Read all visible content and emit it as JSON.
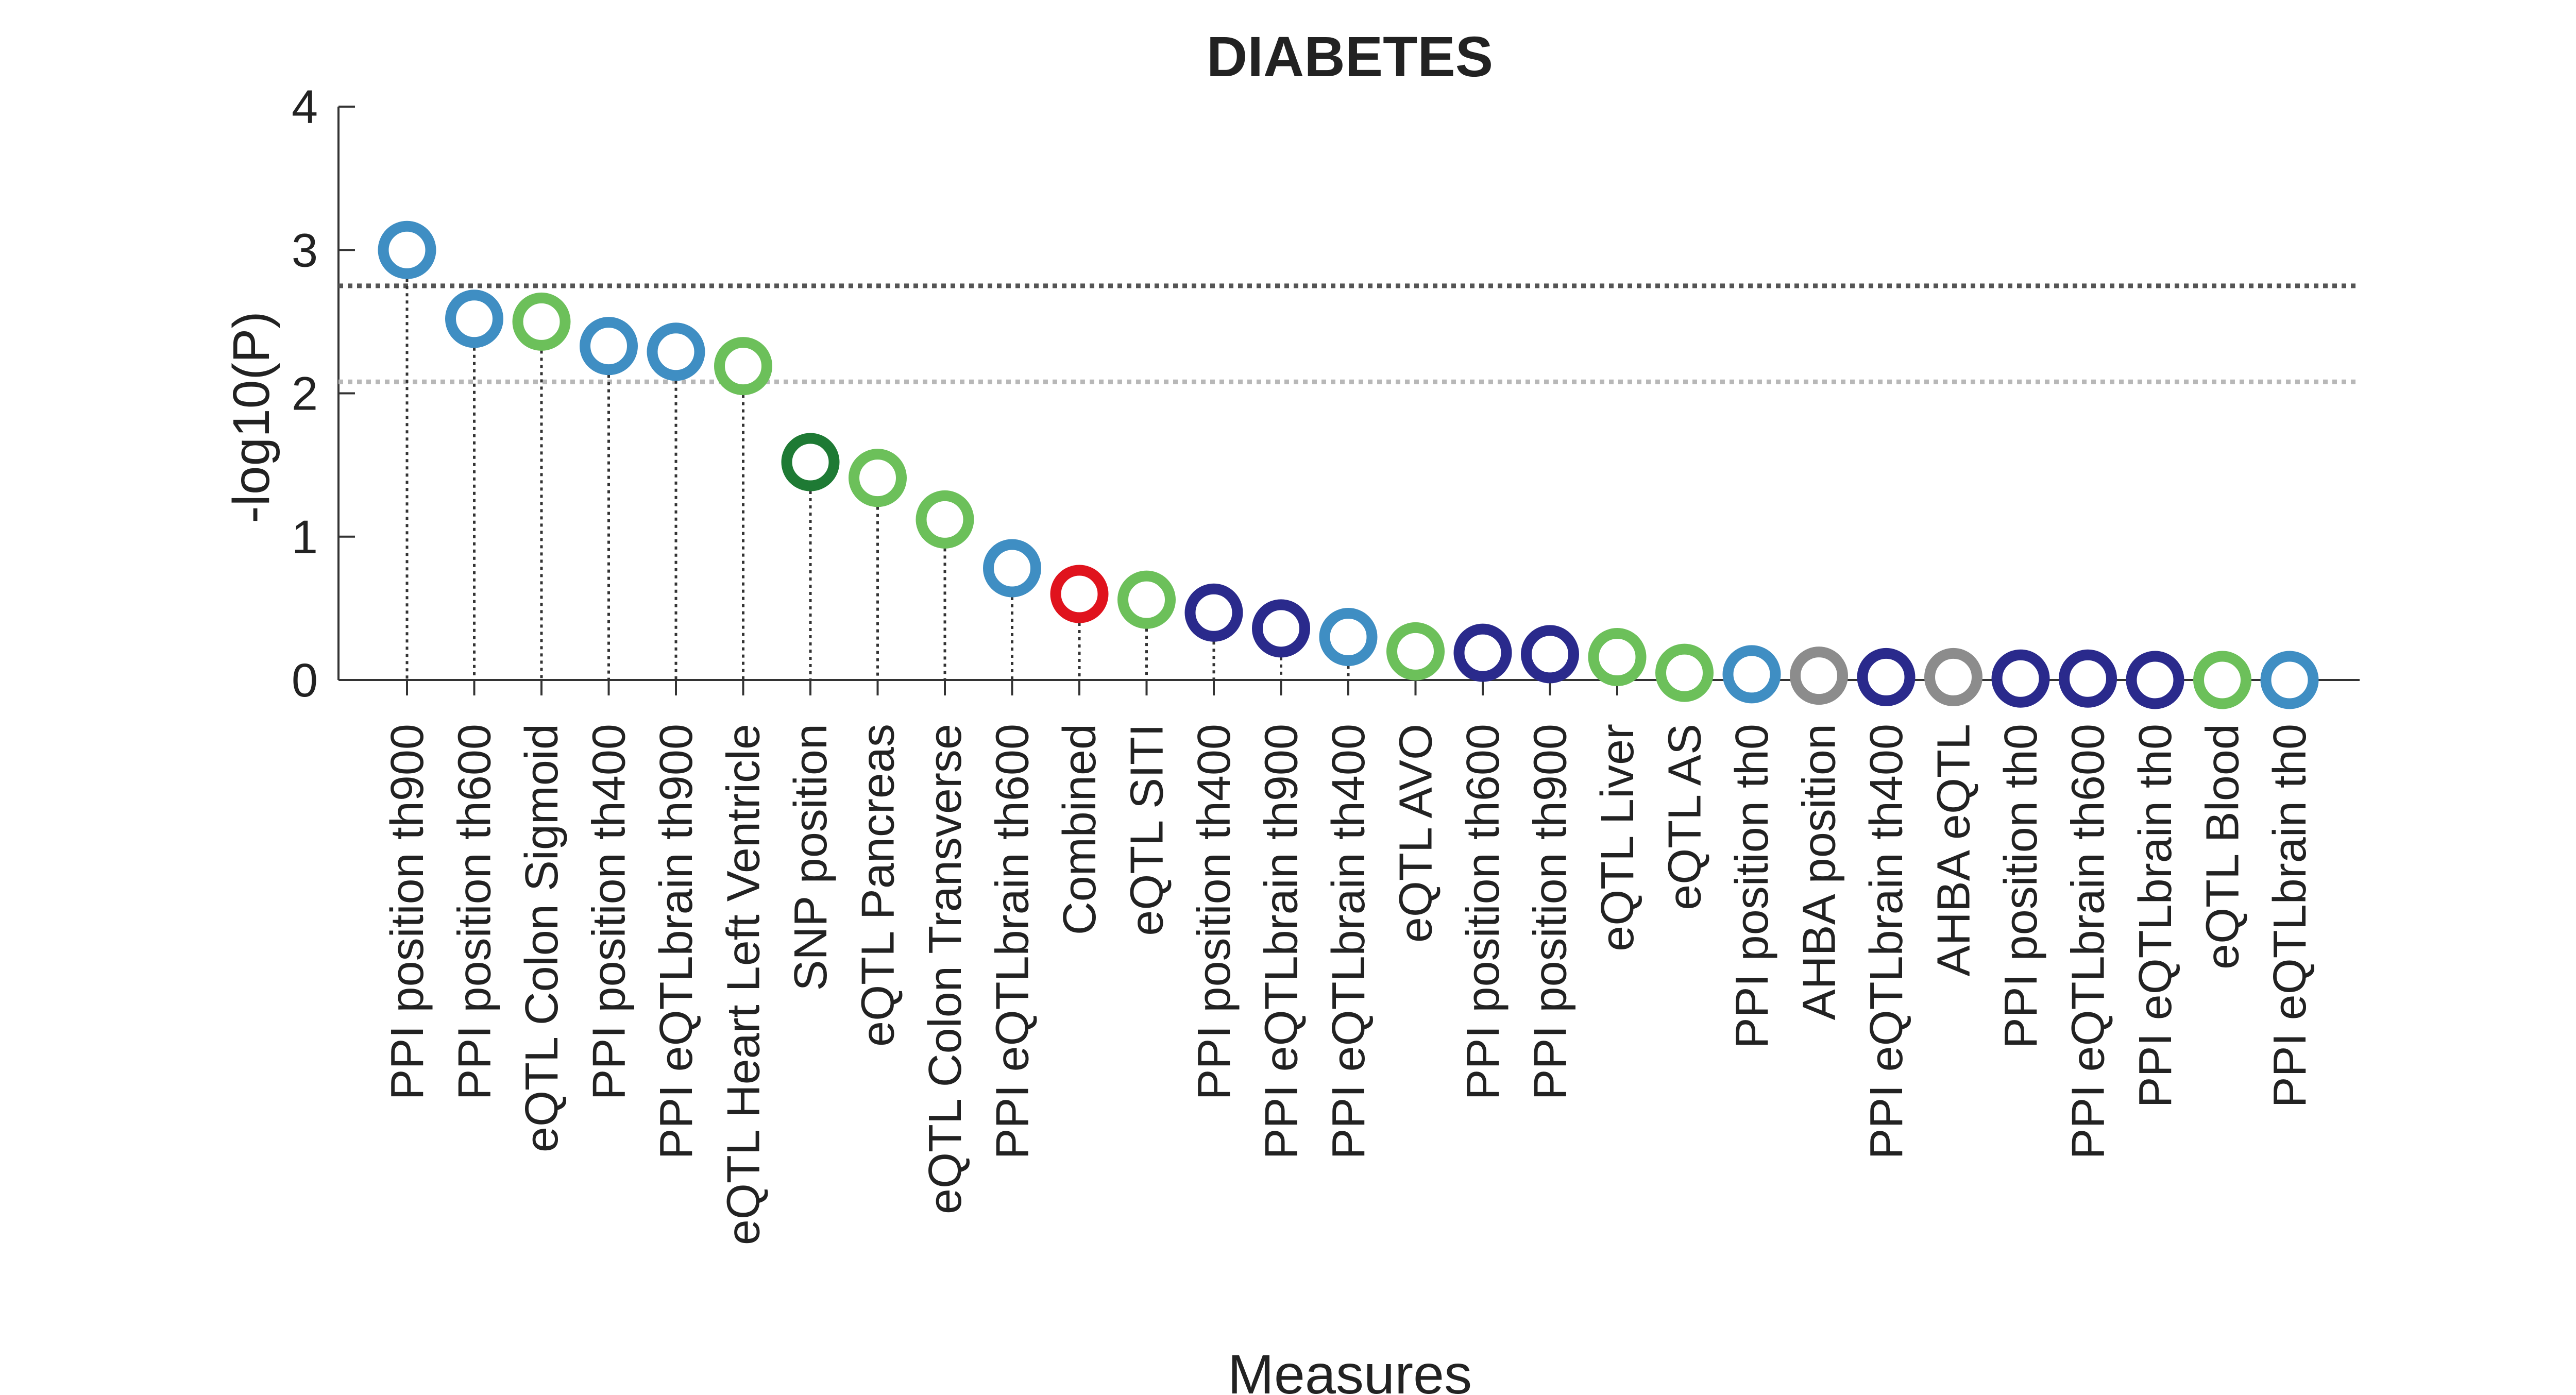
{
  "chart_data": {
    "type": "scatter",
    "title": "DIABETES",
    "xlabel": "Measures",
    "ylabel": "-log10(P)",
    "ylim": [
      0,
      4
    ],
    "yticks": [
      "0",
      "1",
      "2",
      "3",
      "4"
    ],
    "grid": false,
    "legend": "none",
    "marker": "open-circle-stem",
    "thresholds": [
      {
        "y": 2.75,
        "color": "#555555"
      },
      {
        "y": 2.08,
        "color": "#b8b8b8"
      }
    ],
    "colors": {
      "light_blue": "#3f8ec3",
      "light_green": "#6cc05a",
      "dark_blue": "#2a2a8c",
      "dark_green": "#1e7a34",
      "red": "#e0131d",
      "gray": "#8c8c8c"
    },
    "points": [
      {
        "label": "PPI position th900",
        "y": 3.0,
        "color": "#3f8ec3"
      },
      {
        "label": "PPI position th600",
        "y": 2.52,
        "color": "#3f8ec3"
      },
      {
        "label": "eQTL Colon Sigmoid",
        "y": 2.5,
        "color": "#6cc05a"
      },
      {
        "label": "PPI position th400",
        "y": 2.33,
        "color": "#3f8ec3"
      },
      {
        "label": "PPI eQTLbrain th900",
        "y": 2.29,
        "color": "#3f8ec3"
      },
      {
        "label": "eQTL Heart Left Ventricle",
        "y": 2.19,
        "color": "#6cc05a"
      },
      {
        "label": "SNP position",
        "y": 1.52,
        "color": "#1e7a34"
      },
      {
        "label": "eQTL Pancreas",
        "y": 1.41,
        "color": "#6cc05a"
      },
      {
        "label": "eQTL Colon Transverse",
        "y": 1.12,
        "color": "#6cc05a"
      },
      {
        "label": "PPI eQTLbrain th600",
        "y": 0.78,
        "color": "#3f8ec3"
      },
      {
        "label": "Combined",
        "y": 0.6,
        "color": "#e0131d"
      },
      {
        "label": "eQTL SITI",
        "y": 0.56,
        "color": "#6cc05a"
      },
      {
        "label": "PPI position th400",
        "y": 0.47,
        "color": "#2a2a8c"
      },
      {
        "label": "PPI eQTLbrain th900",
        "y": 0.36,
        "color": "#2a2a8c"
      },
      {
        "label": "PPI eQTLbrain th400",
        "y": 0.3,
        "color": "#3f8ec3"
      },
      {
        "label": "eQTL AVO",
        "y": 0.2,
        "color": "#6cc05a"
      },
      {
        "label": "PPI position th600",
        "y": 0.19,
        "color": "#2a2a8c"
      },
      {
        "label": "PPI position th900",
        "y": 0.18,
        "color": "#2a2a8c"
      },
      {
        "label": "eQTL Liver",
        "y": 0.16,
        "color": "#6cc05a"
      },
      {
        "label": "eQTL AS",
        "y": 0.05,
        "color": "#6cc05a"
      },
      {
        "label": "PPI position th0",
        "y": 0.04,
        "color": "#3f8ec3"
      },
      {
        "label": "AHBA position",
        "y": 0.03,
        "color": "#8c8c8c"
      },
      {
        "label": "PPI eQTLbrain th400",
        "y": 0.02,
        "color": "#2a2a8c"
      },
      {
        "label": "AHBA eQTL",
        "y": 0.02,
        "color": "#8c8c8c"
      },
      {
        "label": "PPI position th0",
        "y": 0.01,
        "color": "#2a2a8c"
      },
      {
        "label": "PPI eQTLbrain th600",
        "y": 0.01,
        "color": "#2a2a8c"
      },
      {
        "label": "PPI eQTLbrain th0",
        "y": 0.0,
        "color": "#2a2a8c"
      },
      {
        "label": "eQTL Blood",
        "y": 0.0,
        "color": "#6cc05a"
      },
      {
        "label": "PPI eQTLbrain th0",
        "y": 0.0,
        "color": "#3f8ec3"
      }
    ]
  }
}
